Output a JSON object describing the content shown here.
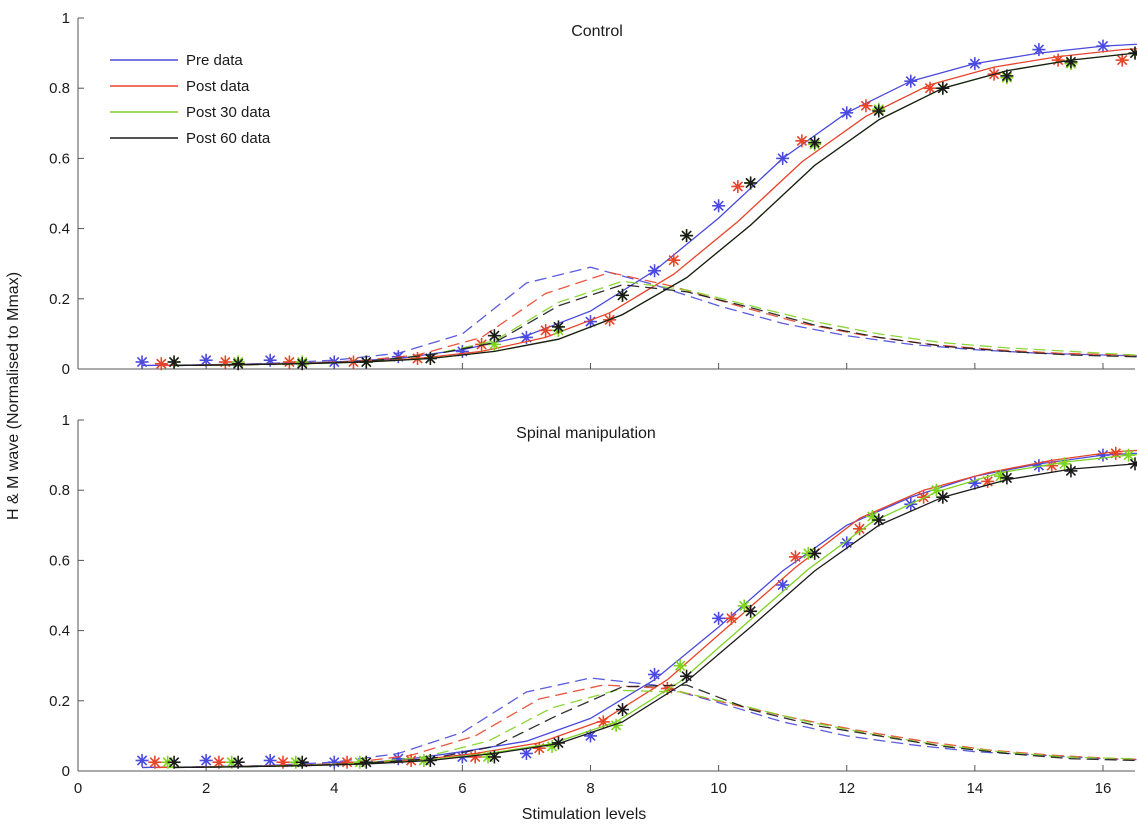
{
  "chart_data": {
    "type": "line",
    "ylabel": "H & M wave (Normalised to Mmax)",
    "xlabel": "Stimulation levels",
    "xlim": [
      0,
      16.5
    ],
    "ylim": [
      0,
      1
    ],
    "xticks": [
      "0",
      "2",
      "4",
      "6",
      "8",
      "10",
      "12",
      "14",
      "16"
    ],
    "yticks": [
      "0",
      "0.2",
      "0.4",
      "0.6",
      "0.8",
      "1"
    ],
    "legend_position": "top-left",
    "legend": [
      {
        "label": "Pre data",
        "color": "#4a4adc"
      },
      {
        "label": "Post data",
        "color": "#e8442a"
      },
      {
        "label": "Post 30 data",
        "color": "#7ed321"
      },
      {
        "label": "Post 60 data",
        "color": "#1a1a1a"
      }
    ],
    "panels": [
      {
        "title": "Control",
        "series": [
          {
            "name": "Pre data",
            "color": "#4a4adc",
            "x_start": 1.0,
            "m_points": [
              0.02,
              0.025,
              0.025,
              0.02,
              0.035,
              0.05,
              0.09,
              0.135,
              0.28,
              0.465,
              0.6,
              0.73,
              0.82,
              0.87,
              0.91,
              0.92,
              0.93
            ],
            "m_fit": [
              0.01,
              0.012,
              0.015,
              0.02,
              0.03,
              0.055,
              0.095,
              0.165,
              0.28,
              0.43,
              0.6,
              0.73,
              0.82,
              0.87,
              0.9,
              0.92,
              0.93
            ],
            "h_fit": [
              0.01,
              0.012,
              0.016,
              0.025,
              0.045,
              0.1,
              0.245,
              0.29,
              0.24,
              0.18,
              0.13,
              0.095,
              0.07,
              0.055,
              0.045,
              0.04,
              0.035
            ]
          },
          {
            "name": "Post data",
            "color": "#e8442a",
            "x_start": 1.3,
            "m_points": [
              0.015,
              0.02,
              0.02,
              0.02,
              0.03,
              0.07,
              0.11,
              0.14,
              0.31,
              0.52,
              0.65,
              0.75,
              0.8,
              0.84,
              0.88,
              0.88,
              0.91
            ],
            "m_fit": [
              0.01,
              0.012,
              0.015,
              0.02,
              0.03,
              0.05,
              0.09,
              0.16,
              0.27,
              0.42,
              0.59,
              0.72,
              0.81,
              0.86,
              0.89,
              0.91,
              0.92
            ],
            "h_fit": [
              0.01,
              0.012,
              0.015,
              0.022,
              0.04,
              0.09,
              0.215,
              0.275,
              0.235,
              0.18,
              0.13,
              0.095,
              0.07,
              0.055,
              0.045,
              0.04,
              0.035
            ]
          },
          {
            "name": "Post 30 data",
            "color": "#7ed321",
            "x_start": 1.5,
            "m_points": [
              0.02,
              0.02,
              0.02,
              0.02,
              0.03,
              0.07,
              0.11,
              0.21,
              0.38,
              0.53,
              0.64,
              0.74,
              0.8,
              0.83,
              0.87,
              0.9,
              0.92
            ],
            "m_fit": [
              0.01,
              0.012,
              0.015,
              0.02,
              0.03,
              0.05,
              0.085,
              0.155,
              0.26,
              0.41,
              0.58,
              0.71,
              0.8,
              0.85,
              0.88,
              0.9,
              0.91
            ],
            "h_fit": [
              0.01,
              0.012,
              0.015,
              0.022,
              0.04,
              0.08,
              0.19,
              0.25,
              0.225,
              0.18,
              0.135,
              0.1,
              0.075,
              0.06,
              0.05,
              0.04,
              0.035
            ]
          },
          {
            "name": "Post 60 data",
            "color": "#1a1a1a",
            "x_start": 1.5,
            "m_points": [
              0.02,
              0.015,
              0.015,
              0.02,
              0.03,
              0.095,
              0.12,
              0.21,
              0.38,
              0.53,
              0.645,
              0.735,
              0.8,
              0.835,
              0.875,
              0.9,
              0.91
            ],
            "m_fit": [
              0.01,
              0.012,
              0.015,
              0.02,
              0.03,
              0.05,
              0.085,
              0.155,
              0.26,
              0.41,
              0.58,
              0.71,
              0.8,
              0.85,
              0.88,
              0.9,
              0.91
            ],
            "h_fit": [
              0.01,
              0.012,
              0.015,
              0.022,
              0.04,
              0.075,
              0.18,
              0.24,
              0.22,
              0.175,
              0.125,
              0.09,
              0.065,
              0.05,
              0.04,
              0.035,
              0.03
            ]
          }
        ]
      },
      {
        "title": "Spinal manipulation",
        "series": [
          {
            "name": "Pre data",
            "color": "#4a4adc",
            "x_start": 1.0,
            "m_points": [
              0.03,
              0.03,
              0.03,
              0.025,
              0.035,
              0.04,
              0.05,
              0.1,
              0.275,
              0.435,
              0.53,
              0.65,
              0.76,
              0.82,
              0.87,
              0.9,
              0.91
            ],
            "m_fit": [
              0.01,
              0.012,
              0.015,
              0.02,
              0.03,
              0.055,
              0.085,
              0.15,
              0.26,
              0.41,
              0.57,
              0.7,
              0.78,
              0.84,
              0.875,
              0.9,
              0.91
            ],
            "h_fit": [
              0.01,
              0.012,
              0.016,
              0.025,
              0.05,
              0.11,
              0.225,
              0.265,
              0.245,
              0.195,
              0.14,
              0.1,
              0.075,
              0.055,
              0.045,
              0.035,
              0.03
            ]
          },
          {
            "name": "Post data",
            "color": "#e8442a",
            "x_start": 1.2,
            "m_points": [
              0.025,
              0.025,
              0.025,
              0.025,
              0.03,
              0.04,
              0.065,
              0.14,
              0.235,
              0.435,
              0.61,
              0.69,
              0.78,
              0.825,
              0.87,
              0.905,
              0.925
            ],
            "m_fit": [
              0.01,
              0.012,
              0.015,
              0.02,
              0.03,
              0.05,
              0.08,
              0.145,
              0.26,
              0.42,
              0.58,
              0.72,
              0.8,
              0.85,
              0.885,
              0.91,
              0.92
            ],
            "h_fit": [
              0.01,
              0.012,
              0.015,
              0.022,
              0.045,
              0.1,
              0.205,
              0.245,
              0.235,
              0.19,
              0.15,
              0.115,
              0.085,
              0.06,
              0.045,
              0.035,
              0.03
            ]
          },
          {
            "name": "Post 30 data",
            "color": "#7ed321",
            "x_start": 1.4,
            "m_points": [
              0.025,
              0.025,
              0.025,
              0.025,
              0.03,
              0.04,
              0.07,
              0.13,
              0.3,
              0.47,
              0.62,
              0.725,
              0.8,
              0.84,
              0.875,
              0.9,
              0.91
            ],
            "m_fit": [
              0.01,
              0.012,
              0.015,
              0.02,
              0.03,
              0.05,
              0.078,
              0.14,
              0.255,
              0.415,
              0.575,
              0.71,
              0.795,
              0.85,
              0.88,
              0.9,
              0.91
            ],
            "h_fit": [
              0.01,
              0.012,
              0.015,
              0.022,
              0.04,
              0.085,
              0.18,
              0.23,
              0.225,
              0.185,
              0.14,
              0.105,
              0.075,
              0.055,
              0.04,
              0.035,
              0.03
            ]
          },
          {
            "name": "Post 60 data",
            "color": "#1a1a1a",
            "x_start": 1.5,
            "m_points": [
              0.025,
              0.025,
              0.025,
              0.025,
              0.03,
              0.04,
              0.08,
              0.175,
              0.27,
              0.455,
              0.62,
              0.715,
              0.78,
              0.835,
              0.855,
              0.875,
              0.885
            ],
            "m_fit": [
              0.01,
              0.012,
              0.015,
              0.02,
              0.03,
              0.05,
              0.078,
              0.14,
              0.255,
              0.41,
              0.57,
              0.7,
              0.78,
              0.83,
              0.86,
              0.875,
              0.885
            ],
            "h_fit": [
              0.01,
              0.012,
              0.015,
              0.022,
              0.035,
              0.07,
              0.16,
              0.24,
              0.245,
              0.175,
              0.13,
              0.1,
              0.07,
              0.05,
              0.035,
              0.03,
              0.03
            ]
          }
        ]
      }
    ]
  }
}
